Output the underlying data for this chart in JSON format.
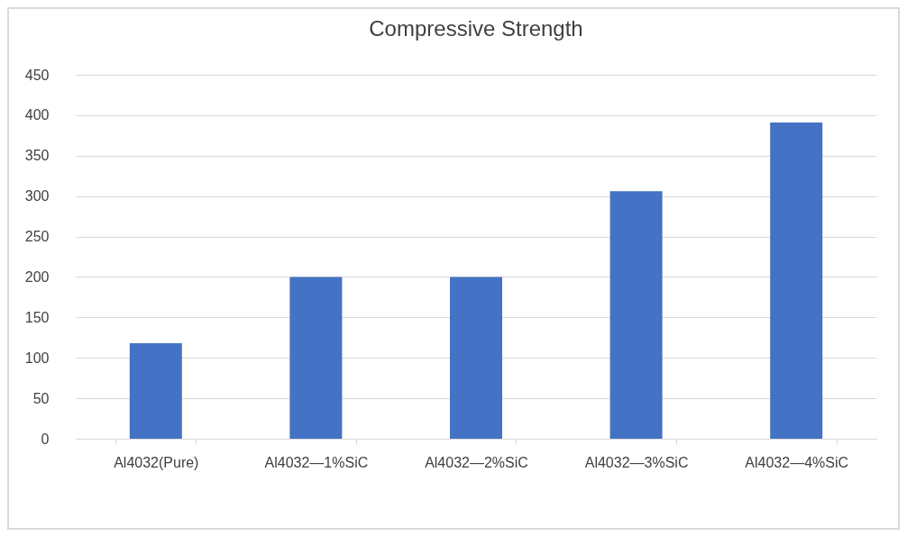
{
  "chart_data": {
    "type": "bar",
    "title": "Compressive Strength",
    "categories": [
      "Al4032(Pure)",
      "Al4032—1%SiC",
      "Al4032—2%SiC",
      "Al4032—3%SiC",
      "Al4032—4%SiC"
    ],
    "values": [
      118,
      200,
      200,
      306,
      391
    ],
    "color": "#4472c4",
    "ylim": [
      0,
      450
    ],
    "yticks": [
      0,
      50,
      100,
      150,
      200,
      250,
      300,
      350,
      400,
      450
    ],
    "grid": "y"
  }
}
